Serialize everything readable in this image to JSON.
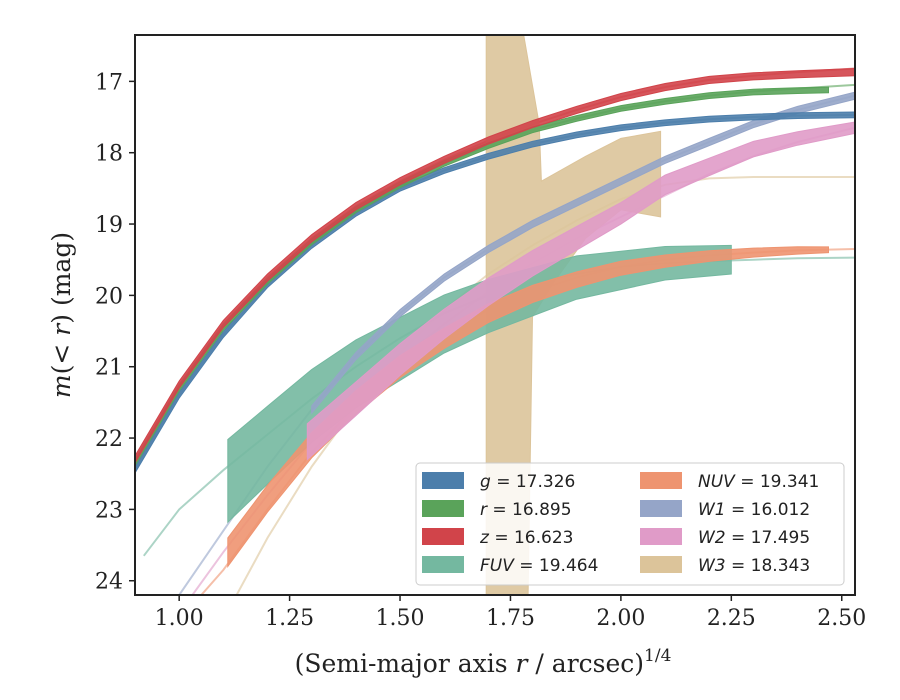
{
  "chart_data": {
    "type": "line",
    "xlabel": "(Semi-major axis r / arcsec)",
    "xlabel_parts": {
      "pre": "(Semi-major axis ",
      "var": "r",
      "post": " / arcsec)",
      "sup": "1/4"
    },
    "ylabel_parts": {
      "var1": "m",
      "mid": "(< ",
      "var2": "r",
      "post": ") (mag)"
    },
    "xlim": [
      0.9,
      2.53
    ],
    "ylim": [
      24.2,
      16.35
    ],
    "y_inverted": true,
    "xticks": [
      1.0,
      1.25,
      1.5,
      1.75,
      2.0,
      2.25,
      2.5
    ],
    "xtick_labels": [
      "1.00",
      "1.25",
      "1.50",
      "1.75",
      "2.00",
      "2.25",
      "2.50"
    ],
    "yticks": [
      17,
      18,
      19,
      20,
      21,
      22,
      23,
      24
    ],
    "ytick_labels": [
      "17",
      "18",
      "19",
      "20",
      "21",
      "22",
      "23",
      "24"
    ],
    "grid": false,
    "legend_position": "lower-right",
    "series": [
      {
        "name": "g = 17.326",
        "band": "g",
        "total": "17.326",
        "color": "#4c7eab",
        "model": {
          "x": [
            0.9,
            1.0,
            1.1,
            1.2,
            1.3,
            1.4,
            1.5,
            1.6,
            1.7,
            1.8,
            1.9,
            2.0,
            2.1,
            2.2,
            2.3,
            2.4,
            2.53
          ],
          "y": [
            22.45,
            21.4,
            20.55,
            19.85,
            19.3,
            18.85,
            18.5,
            18.25,
            18.05,
            17.88,
            17.75,
            17.65,
            17.58,
            17.53,
            17.5,
            17.48,
            17.47
          ]
        },
        "data": {
          "x": [
            0.9,
            1.0,
            1.1,
            1.2,
            1.3,
            1.4,
            1.5,
            1.6,
            1.7,
            1.8,
            1.9,
            2.0,
            2.1,
            2.2,
            2.3,
            2.4,
            2.53
          ],
          "y": [
            22.45,
            21.4,
            20.55,
            19.85,
            19.3,
            18.85,
            18.5,
            18.25,
            18.05,
            17.88,
            17.75,
            17.65,
            17.58,
            17.53,
            17.5,
            17.48,
            17.47
          ],
          "half_width": 0.04
        }
      },
      {
        "name": "r = 16.895",
        "band": "r",
        "total": "16.895",
        "color": "#5aa35a",
        "model": {
          "x": [
            0.9,
            1.0,
            1.1,
            1.2,
            1.3,
            1.4,
            1.5,
            1.6,
            1.7,
            1.8,
            1.9,
            2.0,
            2.1,
            2.2,
            2.3,
            2.4,
            2.53
          ],
          "y": [
            22.35,
            21.3,
            20.45,
            19.8,
            19.25,
            18.8,
            18.45,
            18.15,
            17.9,
            17.68,
            17.52,
            17.38,
            17.28,
            17.2,
            17.14,
            17.1,
            17.05
          ]
        },
        "data": {
          "x": [
            0.9,
            1.0,
            1.1,
            1.2,
            1.3,
            1.4,
            1.5,
            1.6,
            1.7,
            1.8,
            1.9,
            2.0,
            2.1,
            2.2,
            2.3,
            2.4,
            2.47
          ],
          "y": [
            22.35,
            21.3,
            20.45,
            19.8,
            19.25,
            18.8,
            18.45,
            18.15,
            17.9,
            17.68,
            17.52,
            17.38,
            17.28,
            17.2,
            17.15,
            17.13,
            17.12
          ],
          "half_width": 0.04
        }
      },
      {
        "name": "z = 16.623",
        "band": "z",
        "total": "16.623",
        "color": "#d1444a",
        "model": {
          "x": [
            0.9,
            1.0,
            1.1,
            1.2,
            1.3,
            1.4,
            1.5,
            1.6,
            1.7,
            1.8,
            1.9,
            2.0,
            2.1,
            2.2,
            2.3,
            2.4,
            2.53
          ],
          "y": [
            22.3,
            21.25,
            20.4,
            19.75,
            19.2,
            18.75,
            18.4,
            18.1,
            17.83,
            17.6,
            17.4,
            17.22,
            17.08,
            16.98,
            16.92,
            16.87,
            16.82
          ]
        },
        "data": {
          "x": [
            0.9,
            1.0,
            1.1,
            1.2,
            1.3,
            1.4,
            1.5,
            1.6,
            1.7,
            1.8,
            1.9,
            2.0,
            2.1,
            2.2,
            2.3,
            2.4,
            2.53
          ],
          "y": [
            22.3,
            21.25,
            20.4,
            19.75,
            19.2,
            18.75,
            18.4,
            18.1,
            17.83,
            17.6,
            17.4,
            17.22,
            17.08,
            16.98,
            16.93,
            16.9,
            16.87
          ],
          "half_width": 0.05
        }
      },
      {
        "name": "FUV = 19.464",
        "band": "FUV",
        "total": "19.464",
        "color": "#74b8a0",
        "model": {
          "x": [
            0.92,
            1.0,
            1.1,
            1.2,
            1.3,
            1.4,
            1.5,
            1.6,
            1.7,
            1.8,
            1.9,
            2.0,
            2.1,
            2.2,
            2.3,
            2.4,
            2.53
          ],
          "y": [
            23.65,
            23.0,
            22.45,
            21.95,
            21.45,
            21.0,
            20.6,
            20.25,
            20.0,
            19.82,
            19.7,
            19.6,
            19.55,
            19.52,
            19.5,
            19.48,
            19.47
          ]
        },
        "data": {
          "x": [
            1.11,
            1.2,
            1.3,
            1.4,
            1.5,
            1.6,
            1.7,
            1.8,
            1.9,
            2.0,
            2.1,
            2.25
          ],
          "y": [
            22.6,
            22.1,
            21.55,
            21.1,
            20.75,
            20.4,
            20.15,
            19.95,
            19.75,
            19.65,
            19.55,
            19.5
          ],
          "half_width": 0.58,
          "half_width_end": 0.2
        }
      },
      {
        "name": "NUV = 19.341",
        "band": "NUV",
        "total": "19.341",
        "color": "#ee9470",
        "model": {
          "x": [
            1.05,
            1.1,
            1.2,
            1.3,
            1.4,
            1.5,
            1.6,
            1.7,
            1.8,
            1.9,
            2.0,
            2.1,
            2.2,
            2.3,
            2.4,
            2.53
          ],
          "y": [
            24.2,
            23.85,
            23.0,
            22.2,
            21.55,
            21.0,
            20.55,
            20.2,
            19.95,
            19.75,
            19.6,
            19.5,
            19.44,
            19.4,
            19.37,
            19.35
          ]
        },
        "data": {
          "x": [
            1.11,
            1.2,
            1.3,
            1.4,
            1.5,
            1.6,
            1.7,
            1.8,
            1.9,
            2.0,
            2.1,
            2.2,
            2.3,
            2.4,
            2.47
          ],
          "y": [
            23.6,
            22.85,
            22.1,
            21.5,
            21.0,
            20.6,
            20.25,
            19.98,
            19.78,
            19.62,
            19.52,
            19.45,
            19.4,
            19.37,
            19.36
          ],
          "half_width": 0.2,
          "half_width_end": 0.04
        }
      },
      {
        "name": "W1 = 16.012",
        "band": "W1",
        "total": "16.012",
        "color": "#95a5c8",
        "model": {
          "x": [
            1.0,
            1.1,
            1.2,
            1.3,
            1.4,
            1.5,
            1.6,
            1.7,
            1.8,
            1.9,
            2.0,
            2.1,
            2.2,
            2.3,
            2.4,
            2.53
          ],
          "y": [
            24.2,
            23.3,
            22.4,
            21.6,
            20.85,
            20.25,
            19.75,
            19.35,
            19.0,
            18.7,
            18.4,
            18.1,
            17.85,
            17.6,
            17.4,
            17.2
          ]
        },
        "data": {
          "x": [
            1.3,
            1.4,
            1.5,
            1.6,
            1.7,
            1.8,
            1.9,
            2.0,
            2.1,
            2.2,
            2.3,
            2.4,
            2.53
          ],
          "y": [
            21.6,
            20.85,
            20.25,
            19.75,
            19.35,
            19.0,
            18.7,
            18.4,
            18.1,
            17.85,
            17.6,
            17.4,
            17.2
          ],
          "half_width": 0.05
        }
      },
      {
        "name": "W2 = 17.495",
        "band": "W2",
        "total": "17.495",
        "color": "#e09bc8",
        "model": {
          "x": [
            1.03,
            1.1,
            1.2,
            1.3,
            1.4,
            1.5,
            1.6,
            1.7,
            1.8,
            1.9,
            2.0,
            2.1,
            2.2,
            2.3,
            2.4,
            2.53
          ],
          "y": [
            24.2,
            23.6,
            22.8,
            22.05,
            21.45,
            20.9,
            20.4,
            19.95,
            19.55,
            19.2,
            18.9,
            18.6,
            18.3,
            18.05,
            17.85,
            17.65
          ]
        },
        "data": {
          "x": [
            1.29,
            1.4,
            1.5,
            1.6,
            1.7,
            1.8,
            1.9,
            2.0,
            2.1,
            2.2,
            2.3,
            2.4,
            2.53
          ],
          "y": [
            22.05,
            21.45,
            20.9,
            20.4,
            19.95,
            19.55,
            19.2,
            18.85,
            18.45,
            18.2,
            17.95,
            17.8,
            17.65
          ],
          "half_width": 0.25,
          "half_width_end": 0.08
        }
      },
      {
        "name": "W3 = 18.343",
        "band": "W3",
        "total": "18.343",
        "color": "#dcc49a",
        "model": {
          "x": [
            1.13,
            1.2,
            1.3,
            1.4,
            1.5,
            1.6,
            1.7,
            1.8,
            1.9,
            2.0,
            2.1,
            2.2,
            2.3,
            2.4,
            2.53
          ],
          "y": [
            24.2,
            23.4,
            22.4,
            21.55,
            20.8,
            20.2,
            19.7,
            19.3,
            18.95,
            18.65,
            18.45,
            18.36,
            18.34,
            18.34,
            18.34
          ]
        },
        "data": {
          "x_upper": [
            1.695,
            1.78,
            1.815,
            1.82,
            1.92,
            2.0,
            2.09
          ],
          "y_upper": [
            16.35,
            16.35,
            17.6,
            18.4,
            18.05,
            17.8,
            17.7
          ],
          "x_lower": [
            2.09,
            2.0,
            1.92,
            1.85,
            1.8,
            1.79,
            1.695
          ],
          "y_lower": [
            18.9,
            18.8,
            19.2,
            19.8,
            20.3,
            24.2,
            24.2
          ]
        }
      }
    ]
  }
}
